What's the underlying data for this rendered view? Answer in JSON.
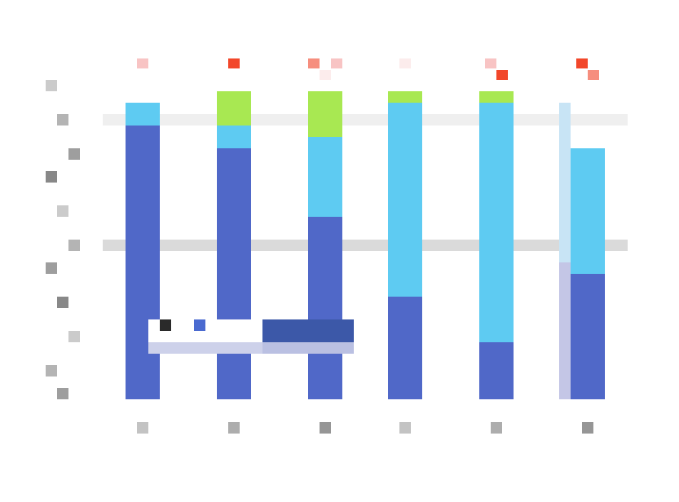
{
  "chart_data": {
    "type": "bar",
    "stacked": true,
    "categories": [
      "",
      "",
      "",
      "",
      "",
      ""
    ],
    "series": [
      {
        "color": "#5068c8",
        "values": [
          480,
          440,
          320,
          180,
          100,
          220
        ]
      },
      {
        "color": "#5ecbf2",
        "values": [
          40,
          40,
          140,
          340,
          420,
          220
        ]
      },
      {
        "color": "#a8e852",
        "values": [
          0,
          60,
          80,
          20,
          20,
          0
        ]
      }
    ],
    "shadow_bar": {
      "category_index": 5,
      "color": "#c4c6e6",
      "total": 520,
      "split_color": "#c8e6f6",
      "split_at": 240
    },
    "gridlines_at": [
      490,
      270
    ],
    "gridline_colors": [
      "#efefef",
      "#dadada"
    ],
    "ylim": [
      0,
      540
    ],
    "grid": true,
    "legend_position": "bottom-left",
    "highlight_markers": {
      "colors": [
        "#f8c4c4",
        "#f2472a",
        "#f68e7e",
        "#fcecec"
      ],
      "per_category": [
        1,
        1,
        3,
        1,
        2,
        2
      ]
    },
    "title": "",
    "subtitle": "",
    "xlabel": "",
    "ylabel": ""
  },
  "legend": {
    "items": [
      {
        "color": "#2a2a2a"
      },
      {
        "color": "#4a6ad0"
      }
    ]
  },
  "colors": {
    "background": "#ffffff",
    "axis_text": "#6a6a6a"
  }
}
